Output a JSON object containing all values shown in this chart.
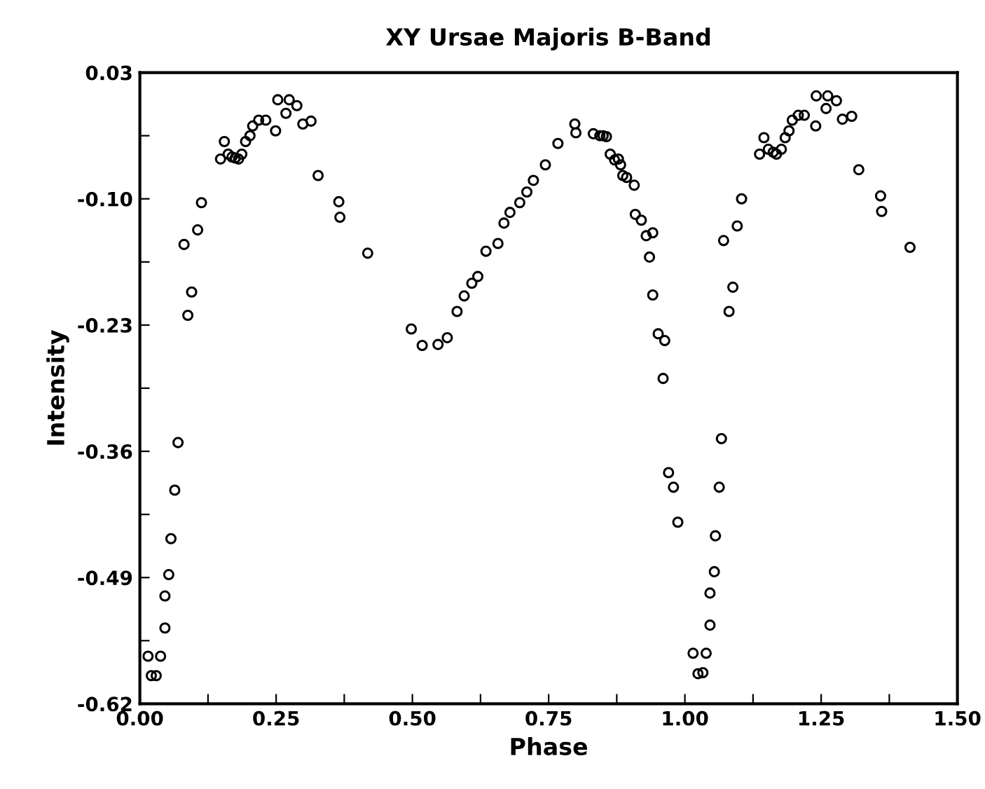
{
  "chart_data": {
    "type": "scatter",
    "title": "XY Ursae Majoris B-Band",
    "xlabel": "Phase",
    "ylabel": "Intensity",
    "marker": "circle",
    "grid": false,
    "legend": false,
    "xlim": [
      0,
      1.5
    ],
    "ylim": [
      -0.62,
      0.03
    ],
    "xticks": [
      {
        "value": 0,
        "label": "0.00"
      },
      {
        "value": 0.125,
        "label": null
      },
      {
        "value": 0.25,
        "label": "0.25"
      },
      {
        "value": 0.375,
        "label": null
      },
      {
        "value": 0.5,
        "label": "0.50"
      },
      {
        "value": 0.625,
        "label": null
      },
      {
        "value": 0.75,
        "label": "0.75"
      },
      {
        "value": 0.875,
        "label": null
      },
      {
        "value": 1,
        "label": "1.00"
      },
      {
        "value": 1.125,
        "label": null
      },
      {
        "value": 1.25,
        "label": "1.25"
      },
      {
        "value": 1.375,
        "label": null
      },
      {
        "value": 1.5,
        "label": "1.50"
      }
    ],
    "yticks": [
      {
        "value": -0.62,
        "label": "-0.62"
      },
      {
        "value": -0.555,
        "label": null
      },
      {
        "value": -0.49,
        "label": "-0.49"
      },
      {
        "value": -0.425,
        "label": null
      },
      {
        "value": -0.36,
        "label": "-0.36"
      },
      {
        "value": -0.295,
        "label": null
      },
      {
        "value": -0.23,
        "label": "-0.23"
      },
      {
        "value": -0.165,
        "label": null
      },
      {
        "value": -0.1,
        "label": "-0.10"
      },
      {
        "value": -0.035,
        "label": null
      },
      {
        "value": 0.03,
        "label": "0.03"
      }
    ],
    "series": [
      {
        "color": "#000000",
        "x": [
          0.015,
          0.021,
          0.03,
          0.038,
          0.046,
          0.046,
          0.053,
          0.057,
          0.064,
          0.07,
          0.081,
          0.088,
          0.095,
          0.106,
          0.113,
          0.148,
          0.155,
          0.162,
          0.169,
          0.175,
          0.181,
          0.187,
          0.194,
          0.202,
          0.207,
          0.218,
          0.231,
          0.249,
          0.253,
          0.268,
          0.274,
          0.288,
          0.299,
          0.314,
          0.327,
          0.365,
          0.367,
          0.418,
          0.498,
          0.518,
          0.547,
          0.564,
          0.582,
          0.595,
          0.609,
          0.62,
          0.635,
          0.657,
          0.668,
          0.679,
          0.697,
          0.71,
          0.722,
          0.744,
          0.767,
          0.798,
          0.8,
          0.832,
          0.844,
          0.85,
          0.856,
          0.863,
          0.871,
          0.878,
          0.882,
          0.886,
          0.893,
          0.907,
          0.909,
          0.92,
          0.929,
          0.935,
          0.941,
          0.941,
          0.951,
          0.96,
          0.963,
          0.97,
          0.979,
          0.987,
          1.015,
          1.024,
          1.033,
          1.039,
          1.046,
          1.046,
          1.054,
          1.056,
          1.063,
          1.067,
          1.071,
          1.081,
          1.088,
          1.096,
          1.104,
          1.137,
          1.145,
          1.153,
          1.162,
          1.168,
          1.177,
          1.184,
          1.191,
          1.197,
          1.208,
          1.219,
          1.24,
          1.241,
          1.259,
          1.262,
          1.278,
          1.289,
          1.306,
          1.319,
          1.359,
          1.361,
          1.413
        ],
        "values": [
          -0.571,
          -0.591,
          -0.591,
          -0.571,
          -0.542,
          -0.509,
          -0.487,
          -0.45,
          -0.4,
          -0.351,
          -0.147,
          -0.22,
          -0.196,
          -0.132,
          -0.104,
          -0.059,
          -0.041,
          -0.054,
          -0.057,
          -0.058,
          -0.059,
          -0.054,
          -0.041,
          -0.035,
          -0.025,
          -0.019,
          -0.019,
          -0.03,
          0.002,
          -0.012,
          0.002,
          -0.004,
          -0.023,
          -0.02,
          -0.076,
          -0.103,
          -0.119,
          -0.156,
          -0.234,
          -0.251,
          -0.25,
          -0.243,
          -0.216,
          -0.2,
          -0.187,
          -0.18,
          -0.154,
          -0.146,
          -0.125,
          -0.114,
          -0.104,
          -0.093,
          -0.081,
          -0.065,
          -0.043,
          -0.023,
          -0.032,
          -0.033,
          -0.035,
          -0.035,
          -0.036,
          -0.054,
          -0.06,
          -0.059,
          -0.065,
          -0.076,
          -0.078,
          -0.086,
          -0.116,
          -0.122,
          -0.138,
          -0.16,
          -0.135,
          -0.199,
          -0.239,
          -0.285,
          -0.246,
          -0.382,
          -0.397,
          -0.433,
          -0.568,
          -0.589,
          -0.588,
          -0.568,
          -0.539,
          -0.506,
          -0.484,
          -0.447,
          -0.397,
          -0.347,
          -0.143,
          -0.216,
          -0.191,
          -0.128,
          -0.1,
          -0.054,
          -0.037,
          -0.049,
          -0.052,
          -0.054,
          -0.049,
          -0.037,
          -0.03,
          -0.019,
          -0.014,
          -0.014,
          -0.025,
          0.006,
          -0.007,
          0.006,
          0.001,
          -0.018,
          -0.015,
          -0.07,
          -0.097,
          -0.113,
          -0.15
        ]
      }
    ]
  }
}
